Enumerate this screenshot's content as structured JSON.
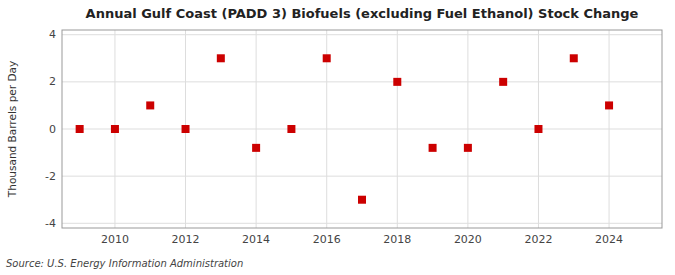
{
  "chart_data": {
    "type": "scatter",
    "title": "Annual Gulf Coast (PADD 3) Biofuels (excluding Fuel Ethanol) Stock Change",
    "y_label": "Thousand Barrels per Day",
    "source": "Source: U.S. Energy Information Administration",
    "x": [
      2009,
      2010,
      2011,
      2012,
      2013,
      2014,
      2015,
      2016,
      2017,
      2018,
      2019,
      2020,
      2021,
      2022,
      2023,
      2024
    ],
    "values": [
      0.0,
      0.0,
      1.0,
      0.0,
      3.0,
      -0.8,
      0.0,
      3.0,
      -3.0,
      2.0,
      -0.8,
      -0.8,
      2.0,
      0.0,
      3.0,
      1.0
    ],
    "color": "#cc0000",
    "marker": "square",
    "xlim": [
      2008.5,
      2025.5
    ],
    "ylim": [
      -4.2,
      4.2
    ],
    "xticks": [
      2010,
      2012,
      2014,
      2016,
      2018,
      2020,
      2022,
      2024
    ],
    "yticks": [
      -4,
      -2,
      0,
      2,
      4
    ],
    "grid": true
  }
}
